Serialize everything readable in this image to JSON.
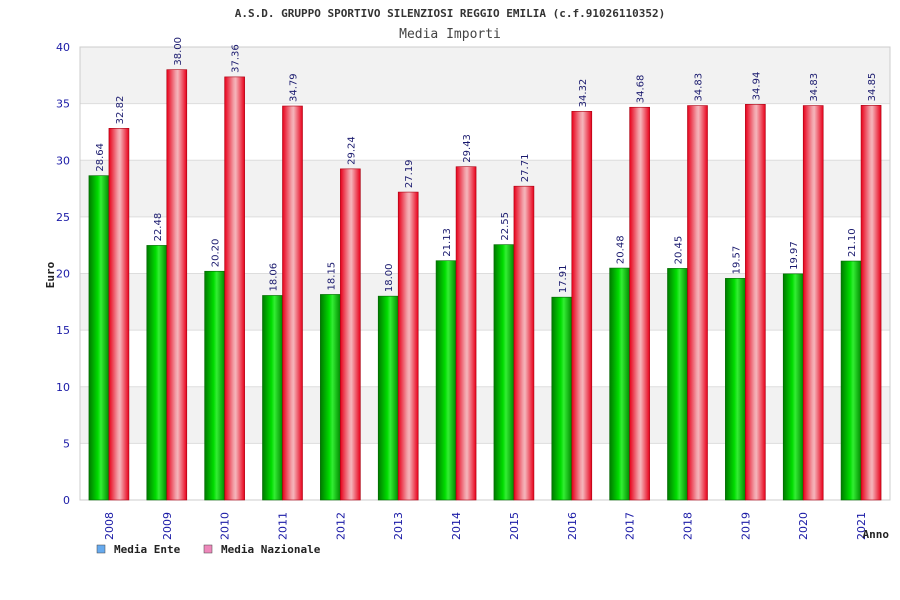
{
  "chart_data": {
    "type": "bar",
    "title": "A.S.D. GRUPPO SPORTIVO SILENZIOSI REGGIO EMILIA (c.f.91026110352)",
    "subtitle": "Media Importi",
    "xlabel": "Anno",
    "ylabel": "Euro",
    "ylim": [
      0,
      40
    ],
    "yticks": [
      0,
      5,
      10,
      15,
      20,
      25,
      30,
      35,
      40
    ],
    "categories": [
      "2008",
      "2009",
      "2010",
      "2011",
      "2012",
      "2013",
      "2014",
      "2015",
      "2016",
      "2017",
      "2018",
      "2019",
      "2020",
      "2021"
    ],
    "series": [
      {
        "name": "Media Ente",
        "values": [
          28.64,
          22.48,
          20.2,
          18.06,
          18.15,
          18.0,
          21.13,
          22.55,
          17.91,
          20.48,
          20.45,
          19.57,
          19.97,
          21.1
        ],
        "labels": [
          "28.64",
          "22.48",
          "20.20",
          "18.06",
          "18.15",
          "18.00",
          "21.13",
          "22.55",
          "17.91",
          "20.48",
          "20.45",
          "19.57",
          "19.97",
          "21.10"
        ],
        "color": "#00cc00",
        "legend_color": "#66aaee"
      },
      {
        "name": "Media Nazionale",
        "values": [
          32.82,
          38.0,
          37.36,
          34.79,
          29.24,
          27.19,
          29.43,
          27.71,
          34.32,
          34.68,
          34.83,
          34.94,
          34.83,
          34.85
        ],
        "labels": [
          "32.82",
          "38.00",
          "37.36",
          "34.79",
          "29.24",
          "27.19",
          "29.43",
          "27.71",
          "34.32",
          "34.68",
          "34.83",
          "34.94",
          "34.83",
          "34.85"
        ],
        "color": "#ee2233",
        "legend_color": "#ee88bb"
      }
    ],
    "legend_position": "bottom-left",
    "grid": true
  }
}
